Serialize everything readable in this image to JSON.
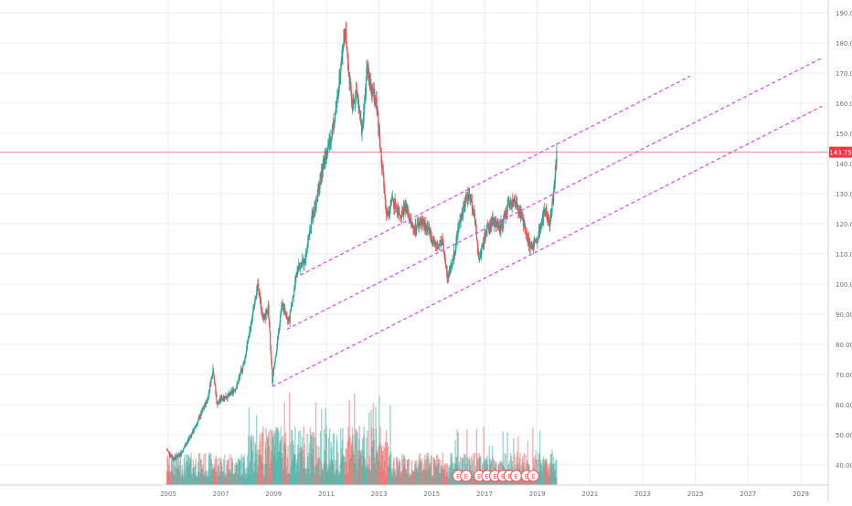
{
  "chart_data": {
    "type": "candlestick",
    "title": "",
    "xlabel": "",
    "ylabel": "",
    "x_range": [
      2004.9,
      2029.7
    ],
    "ylim": [
      34.5,
      192.5
    ],
    "y_ticks": [
      "190.00",
      "180.00",
      "170.00",
      "160.00",
      "150.00",
      "140.00",
      "130.00",
      "120.00",
      "110.00",
      "100.00",
      "90.00",
      "80.00",
      "70.00",
      "60.00",
      "50.00",
      "40.00"
    ],
    "x_ticks": [
      "2005",
      "2007",
      "2009",
      "2011",
      "2013",
      "2015",
      "2017",
      "2019",
      "2021",
      "2023",
      "2025",
      "2027",
      "2029"
    ],
    "current_price": {
      "label": "143.75",
      "value": 143.75,
      "color": "#f23645"
    },
    "price_path": [
      [
        2004.95,
        45
      ],
      [
        2005.2,
        42
      ],
      [
        2005.5,
        44
      ],
      [
        2005.8,
        49
      ],
      [
        2006.0,
        52
      ],
      [
        2006.3,
        58
      ],
      [
        2006.5,
        62
      ],
      [
        2006.7,
        72
      ],
      [
        2006.85,
        60
      ],
      [
        2007.0,
        62
      ],
      [
        2007.3,
        63
      ],
      [
        2007.6,
        66
      ],
      [
        2007.9,
        75
      ],
      [
        2008.2,
        90
      ],
      [
        2008.4,
        100
      ],
      [
        2008.6,
        88
      ],
      [
        2008.8,
        92
      ],
      [
        2008.95,
        68
      ],
      [
        2009.1,
        78
      ],
      [
        2009.3,
        93
      ],
      [
        2009.6,
        88
      ],
      [
        2009.9,
        105
      ],
      [
        2010.2,
        108
      ],
      [
        2010.4,
        120
      ],
      [
        2010.6,
        127
      ],
      [
        2010.9,
        140
      ],
      [
        2011.2,
        150
      ],
      [
        2011.4,
        160
      ],
      [
        2011.6,
        178
      ],
      [
        2011.7,
        185
      ],
      [
        2011.85,
        170
      ],
      [
        2012.0,
        158
      ],
      [
        2012.15,
        165
      ],
      [
        2012.35,
        150
      ],
      [
        2012.55,
        172
      ],
      [
        2012.7,
        165
      ],
      [
        2012.9,
        160
      ],
      [
        2013.1,
        140
      ],
      [
        2013.3,
        122
      ],
      [
        2013.5,
        128
      ],
      [
        2013.8,
        123
      ],
      [
        2014.0,
        126
      ],
      [
        2014.3,
        118
      ],
      [
        2014.6,
        121
      ],
      [
        2014.9,
        117
      ],
      [
        2015.2,
        112
      ],
      [
        2015.4,
        114
      ],
      [
        2015.6,
        102
      ],
      [
        2015.8,
        108
      ],
      [
        2016.0,
        118
      ],
      [
        2016.2,
        126
      ],
      [
        2016.4,
        130
      ],
      [
        2016.6,
        124
      ],
      [
        2016.8,
        108
      ],
      [
        2017.0,
        116
      ],
      [
        2017.3,
        121
      ],
      [
        2017.6,
        119
      ],
      [
        2017.9,
        126
      ],
      [
        2018.2,
        127
      ],
      [
        2018.5,
        120
      ],
      [
        2018.75,
        112
      ],
      [
        2019.0,
        115
      ],
      [
        2019.3,
        125
      ],
      [
        2019.45,
        120
      ],
      [
        2019.6,
        128
      ],
      [
        2019.75,
        143.75
      ]
    ],
    "channel_lines": [
      {
        "name": "",
        "from": [
          2009.8,
          102
        ],
        "to": [
          2024.8,
          169
        ]
      },
      {
        "name": "",
        "from": [
          2009.5,
          85
        ],
        "to": [
          2029.8,
          175
        ]
      },
      {
        "name": "",
        "from": [
          2008.95,
          66
        ],
        "to": [
          2029.8,
          159
        ]
      }
    ],
    "volume_scale_max": 1.0,
    "colors": {
      "up": "#26a69a",
      "down": "#ef5350",
      "channel": "#e040fb",
      "grid": "#ececf0",
      "axis_text": "#6b6f7a"
    },
    "event_markers": [
      {
        "x": 2016.0,
        "label": "E"
      },
      {
        "x": 2016.3,
        "label": "E"
      },
      {
        "x": 2016.8,
        "label": "E"
      },
      {
        "x": 2017.1,
        "label": "E"
      },
      {
        "x": 2017.4,
        "label": "E"
      },
      {
        "x": 2017.7,
        "label": "E"
      },
      {
        "x": 2017.95,
        "label": "E"
      },
      {
        "x": 2018.2,
        "label": "E"
      },
      {
        "x": 2018.6,
        "label": "E"
      },
      {
        "x": 2018.85,
        "label": "E"
      }
    ]
  }
}
